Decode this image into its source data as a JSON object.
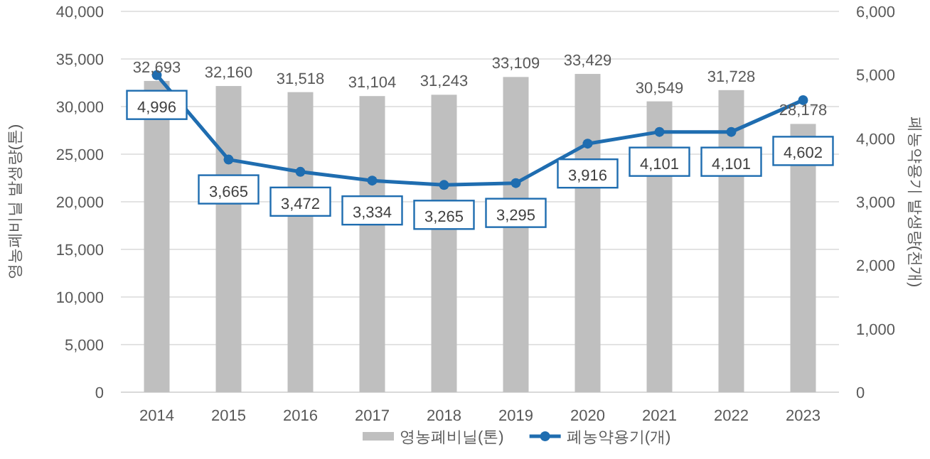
{
  "chart_data": {
    "type": "bar",
    "ylabel": "영농폐비닐 발생량(톤)",
    "y2label": "폐농약용기 발생량(천개)",
    "categories": [
      "2014",
      "2015",
      "2016",
      "2017",
      "2018",
      "2019",
      "2020",
      "2021",
      "2022",
      "2023"
    ],
    "series": [
      {
        "name": "영농폐비닐(톤)",
        "color": "#bfbfbf",
        "values": [
          32693,
          32160,
          31518,
          31104,
          31243,
          33109,
          33429,
          30549,
          31728,
          28178
        ],
        "value_labels": [
          "32,693",
          "32,160",
          "31,518",
          "31,104",
          "31,243",
          "33,109",
          "33,429",
          "30,549",
          "31,728",
          "28,178"
        ]
      },
      {
        "name": "폐농약용기(개)",
        "type": "line",
        "axis": "y2",
        "color": "#1f6db0",
        "marker": "circle",
        "values": [
          4996,
          3665,
          3472,
          3334,
          3265,
          3295,
          3916,
          4101,
          4101,
          4602
        ],
        "value_labels": [
          "4,996",
          "3,665",
          "3,472",
          "3,334",
          "3,265",
          "3,295",
          "3,916",
          "4,101",
          "4,101",
          "4,602"
        ]
      }
    ],
    "ylim": [
      0,
      40000
    ],
    "yticks": [
      {
        "value": 0,
        "label": "0"
      },
      {
        "value": 5000,
        "label": "5,000"
      },
      {
        "value": 10000,
        "label": "10,000"
      },
      {
        "value": 15000,
        "label": "15,000"
      },
      {
        "value": 20000,
        "label": "20,000"
      },
      {
        "value": 25000,
        "label": "25,000"
      },
      {
        "value": 30000,
        "label": "30,000"
      },
      {
        "value": 35000,
        "label": "35,000"
      },
      {
        "value": 40000,
        "label": "40,000"
      }
    ],
    "y2lim": [
      0,
      6000
    ],
    "y2ticks": [
      {
        "value": 0,
        "label": "0"
      },
      {
        "value": 1000,
        "label": "1,000"
      },
      {
        "value": 2000,
        "label": "2,000"
      },
      {
        "value": 3000,
        "label": "3,000"
      },
      {
        "value": 4000,
        "label": "4,000"
      },
      {
        "value": 5000,
        "label": "5,000"
      },
      {
        "value": 6000,
        "label": "6,000"
      }
    ],
    "grid": "y",
    "legend": "bottom"
  }
}
